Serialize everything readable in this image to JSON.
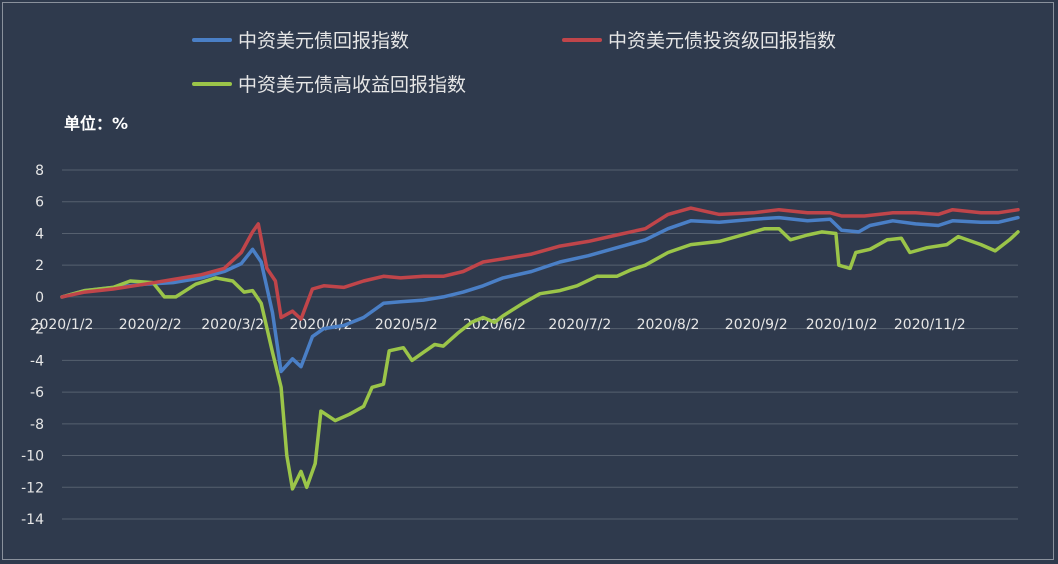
{
  "unit_label": "单位：%",
  "legend": [
    {
      "name": "中资美元债回报指数",
      "color": "#4a7fc6"
    },
    {
      "name": "中资美元债投资级回报指数",
      "color": "#c0454a"
    },
    {
      "name": "中资美元债高收益回报指数",
      "color": "#9bc549"
    }
  ],
  "chart_data": {
    "type": "line",
    "title": "",
    "xlabel": "",
    "ylabel": "单位：%",
    "ylim": [
      -14,
      8
    ],
    "yticks": [
      8,
      6,
      4,
      2,
      0,
      -2,
      -4,
      -6,
      -8,
      -10,
      -12,
      -14
    ],
    "x_tick_labels": [
      "2020/1/2",
      "2020/2/2",
      "2020/3/2",
      "2020/4/2",
      "2020/5/2",
      "2020/6/2",
      "2020/7/2",
      "2020/8/2",
      "2020/9/2",
      "2020/10/2",
      "2020/11/2"
    ],
    "grid": true,
    "legend_position": "top",
    "series": [
      {
        "name": "中资美元债回报指数",
        "color": "#4a7fc6",
        "points": [
          [
            "2020-01-02",
            0.0
          ],
          [
            "2020-01-10",
            0.4
          ],
          [
            "2020-01-20",
            0.6
          ],
          [
            "2020-01-31",
            0.8
          ],
          [
            "2020-02-10",
            0.9
          ],
          [
            "2020-02-20",
            1.2
          ],
          [
            "2020-02-28",
            1.6
          ],
          [
            "2020-03-05",
            2.1
          ],
          [
            "2020-03-09",
            3.0
          ],
          [
            "2020-03-12",
            2.2
          ],
          [
            "2020-03-16",
            -1.0
          ],
          [
            "2020-03-19",
            -4.7
          ],
          [
            "2020-03-23",
            -3.9
          ],
          [
            "2020-03-26",
            -4.4
          ],
          [
            "2020-03-30",
            -2.5
          ],
          [
            "2020-04-03",
            -2.0
          ],
          [
            "2020-04-10",
            -1.8
          ],
          [
            "2020-04-17",
            -1.3
          ],
          [
            "2020-04-24",
            -0.4
          ],
          [
            "2020-04-30",
            -0.3
          ],
          [
            "2020-05-08",
            -0.2
          ],
          [
            "2020-05-15",
            0.0
          ],
          [
            "2020-05-22",
            0.3
          ],
          [
            "2020-05-29",
            0.7
          ],
          [
            "2020-06-05",
            1.2
          ],
          [
            "2020-06-15",
            1.6
          ],
          [
            "2020-06-25",
            2.2
          ],
          [
            "2020-07-05",
            2.6
          ],
          [
            "2020-07-15",
            3.1
          ],
          [
            "2020-07-25",
            3.6
          ],
          [
            "2020-08-02",
            4.3
          ],
          [
            "2020-08-10",
            4.8
          ],
          [
            "2020-08-20",
            4.7
          ],
          [
            "2020-09-01",
            4.9
          ],
          [
            "2020-09-10",
            5.0
          ],
          [
            "2020-09-20",
            4.8
          ],
          [
            "2020-09-28",
            4.9
          ],
          [
            "2020-10-02",
            4.2
          ],
          [
            "2020-10-08",
            4.1
          ],
          [
            "2020-10-12",
            4.5
          ],
          [
            "2020-10-20",
            4.8
          ],
          [
            "2020-10-28",
            4.6
          ],
          [
            "2020-11-05",
            4.5
          ],
          [
            "2020-11-10",
            4.8
          ],
          [
            "2020-11-20",
            4.7
          ],
          [
            "2020-11-26",
            4.7
          ],
          [
            "2020-12-03",
            5.0
          ]
        ]
      },
      {
        "name": "中资美元债投资级回报指数",
        "color": "#c0454a",
        "points": [
          [
            "2020-01-02",
            0.0
          ],
          [
            "2020-01-10",
            0.3
          ],
          [
            "2020-01-20",
            0.5
          ],
          [
            "2020-01-31",
            0.8
          ],
          [
            "2020-02-10",
            1.1
          ],
          [
            "2020-02-20",
            1.4
          ],
          [
            "2020-02-28",
            1.8
          ],
          [
            "2020-03-05",
            2.8
          ],
          [
            "2020-03-09",
            4.1
          ],
          [
            "2020-03-11",
            4.6
          ],
          [
            "2020-03-14",
            1.8
          ],
          [
            "2020-03-17",
            1.0
          ],
          [
            "2020-03-19",
            -1.3
          ],
          [
            "2020-03-23",
            -0.9
          ],
          [
            "2020-03-26",
            -1.4
          ],
          [
            "2020-03-30",
            0.5
          ],
          [
            "2020-04-03",
            0.7
          ],
          [
            "2020-04-10",
            0.6
          ],
          [
            "2020-04-17",
            1.0
          ],
          [
            "2020-04-24",
            1.3
          ],
          [
            "2020-04-30",
            1.2
          ],
          [
            "2020-05-08",
            1.3
          ],
          [
            "2020-05-15",
            1.3
          ],
          [
            "2020-05-22",
            1.6
          ],
          [
            "2020-05-29",
            2.2
          ],
          [
            "2020-06-05",
            2.4
          ],
          [
            "2020-06-15",
            2.7
          ],
          [
            "2020-06-25",
            3.2
          ],
          [
            "2020-07-05",
            3.5
          ],
          [
            "2020-07-15",
            3.9
          ],
          [
            "2020-07-25",
            4.3
          ],
          [
            "2020-08-02",
            5.2
          ],
          [
            "2020-08-10",
            5.6
          ],
          [
            "2020-08-20",
            5.2
          ],
          [
            "2020-09-01",
            5.3
          ],
          [
            "2020-09-10",
            5.5
          ],
          [
            "2020-09-20",
            5.3
          ],
          [
            "2020-09-28",
            5.3
          ],
          [
            "2020-10-02",
            5.1
          ],
          [
            "2020-10-10",
            5.1
          ],
          [
            "2020-10-20",
            5.3
          ],
          [
            "2020-10-28",
            5.3
          ],
          [
            "2020-11-05",
            5.2
          ],
          [
            "2020-11-10",
            5.5
          ],
          [
            "2020-11-20",
            5.3
          ],
          [
            "2020-11-26",
            5.3
          ],
          [
            "2020-12-03",
            5.5
          ]
        ]
      },
      {
        "name": "中资美元债高收益回报指数",
        "color": "#9bc549",
        "points": [
          [
            "2020-01-02",
            0.0
          ],
          [
            "2020-01-10",
            0.4
          ],
          [
            "2020-01-20",
            0.6
          ],
          [
            "2020-01-26",
            1.0
          ],
          [
            "2020-02-03",
            0.9
          ],
          [
            "2020-02-07",
            0.0
          ],
          [
            "2020-02-11",
            0.0
          ],
          [
            "2020-02-18",
            0.8
          ],
          [
            "2020-02-25",
            1.2
          ],
          [
            "2020-03-02",
            1.0
          ],
          [
            "2020-03-06",
            0.3
          ],
          [
            "2020-03-09",
            0.4
          ],
          [
            "2020-03-12",
            -0.4
          ],
          [
            "2020-03-16",
            -3.5
          ],
          [
            "2020-03-19",
            -5.7
          ],
          [
            "2020-03-21",
            -10.0
          ],
          [
            "2020-03-23",
            -12.1
          ],
          [
            "2020-03-26",
            -11.0
          ],
          [
            "2020-03-28",
            -12.0
          ],
          [
            "2020-03-31",
            -10.5
          ],
          [
            "2020-04-02",
            -7.2
          ],
          [
            "2020-04-07",
            -7.8
          ],
          [
            "2020-04-12",
            -7.4
          ],
          [
            "2020-04-17",
            -6.9
          ],
          [
            "2020-04-20",
            -5.7
          ],
          [
            "2020-04-24",
            -5.5
          ],
          [
            "2020-04-26",
            -3.4
          ],
          [
            "2020-05-01",
            -3.2
          ],
          [
            "2020-05-04",
            -4.0
          ],
          [
            "2020-05-08",
            -3.5
          ],
          [
            "2020-05-12",
            -3.0
          ],
          [
            "2020-05-15",
            -3.1
          ],
          [
            "2020-05-20",
            -2.3
          ],
          [
            "2020-05-25",
            -1.6
          ],
          [
            "2020-05-29",
            -1.3
          ],
          [
            "2020-06-02",
            -1.6
          ],
          [
            "2020-06-05",
            -1.2
          ],
          [
            "2020-06-12",
            -0.4
          ],
          [
            "2020-06-18",
            0.2
          ],
          [
            "2020-06-25",
            0.4
          ],
          [
            "2020-07-01",
            0.7
          ],
          [
            "2020-07-08",
            1.3
          ],
          [
            "2020-07-15",
            1.3
          ],
          [
            "2020-07-20",
            1.7
          ],
          [
            "2020-07-25",
            2.0
          ],
          [
            "2020-08-02",
            2.8
          ],
          [
            "2020-08-10",
            3.3
          ],
          [
            "2020-08-20",
            3.5
          ],
          [
            "2020-08-30",
            4.0
          ],
          [
            "2020-09-05",
            4.3
          ],
          [
            "2020-09-10",
            4.3
          ],
          [
            "2020-09-14",
            3.6
          ],
          [
            "2020-09-20",
            3.9
          ],
          [
            "2020-09-25",
            4.1
          ],
          [
            "2020-09-30",
            4.0
          ],
          [
            "2020-10-01",
            2.0
          ],
          [
            "2020-10-05",
            1.8
          ],
          [
            "2020-10-07",
            2.8
          ],
          [
            "2020-10-12",
            3.0
          ],
          [
            "2020-10-18",
            3.6
          ],
          [
            "2020-10-23",
            3.7
          ],
          [
            "2020-10-26",
            2.8
          ],
          [
            "2020-11-01",
            3.1
          ],
          [
            "2020-11-08",
            3.3
          ],
          [
            "2020-11-12",
            3.8
          ],
          [
            "2020-11-20",
            3.3
          ],
          [
            "2020-11-25",
            2.9
          ],
          [
            "2020-11-30",
            3.6
          ],
          [
            "2020-12-03",
            4.1
          ]
        ]
      }
    ]
  }
}
